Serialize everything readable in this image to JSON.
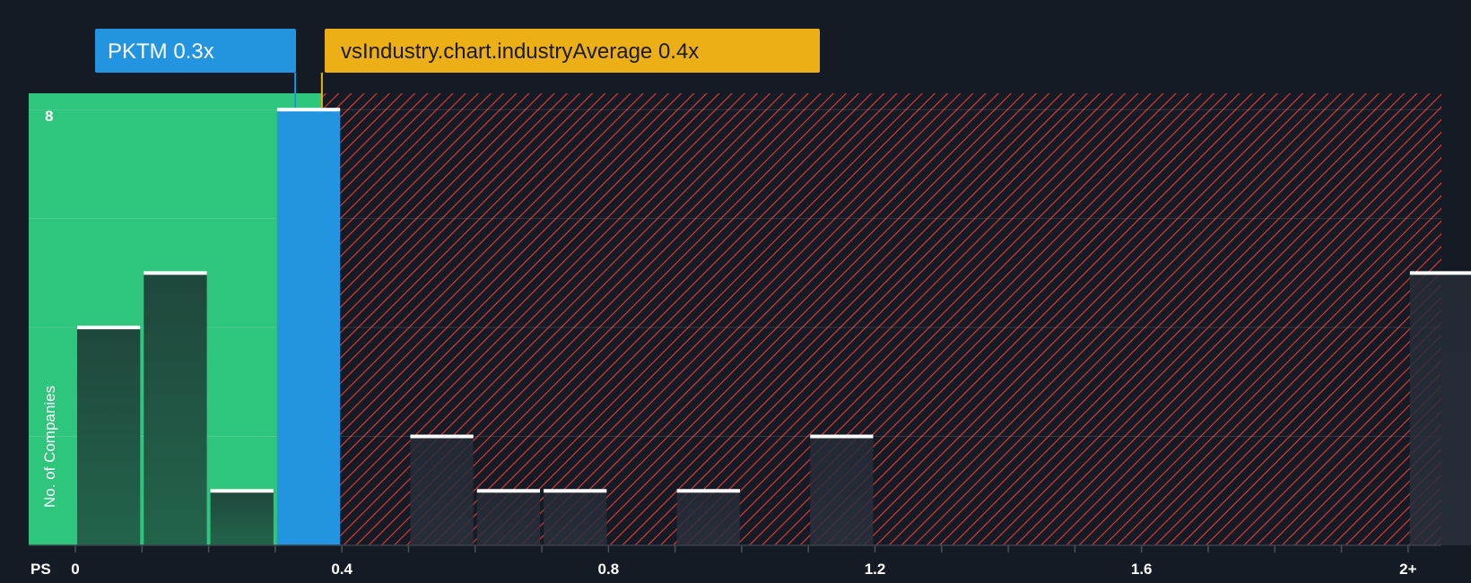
{
  "colors": {
    "background": "#151b24",
    "below_average": "#2ec57c",
    "company": "#2394e0",
    "industry": "#ecb016",
    "above_average": "#d9383c",
    "bar_dark": "#1f473c",
    "bar_muted": "#242a33",
    "bar_cap": "#ffffff"
  },
  "chart_data": {
    "type": "bar",
    "xlabel": "PS",
    "ylabel": "No. of Companies",
    "xlim": [
      -0.07,
      2.05
    ],
    "ylim": [
      0,
      8.3
    ],
    "x_ticks": [
      {
        "value": 0,
        "label": "0"
      },
      {
        "value": 0.4,
        "label": "0.4"
      },
      {
        "value": 0.8,
        "label": "0.8"
      },
      {
        "value": 1.2,
        "label": "1.2"
      },
      {
        "value": 1.6,
        "label": "1.6"
      },
      {
        "value": 2.0,
        "label": "2+"
      }
    ],
    "y_ticks": [
      {
        "value": 8,
        "label": "8"
      }
    ],
    "grid": true,
    "bin_width": 0.1,
    "bins": [
      {
        "start": 0.0,
        "count": 4
      },
      {
        "start": 0.1,
        "count": 5
      },
      {
        "start": 0.2,
        "count": 1
      },
      {
        "start": 0.3,
        "count": 8,
        "highlight": true
      },
      {
        "start": 0.5,
        "count": 2
      },
      {
        "start": 0.6,
        "count": 1
      },
      {
        "start": 0.7,
        "count": 1
      },
      {
        "start": 0.9,
        "count": 1
      },
      {
        "start": 1.1,
        "count": 2
      },
      {
        "start": 2.0,
        "count": 5
      }
    ],
    "company": {
      "label": "PKTM 0.3x",
      "value": 0.33
    },
    "industry_average": {
      "label": "vsIndustry.chart.industryAverage 0.4x",
      "value": 0.37
    }
  }
}
